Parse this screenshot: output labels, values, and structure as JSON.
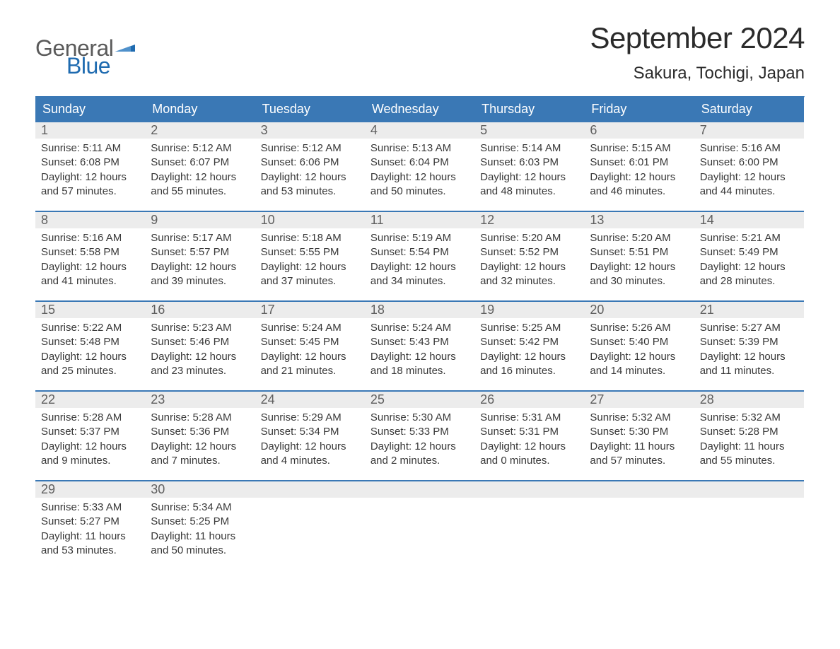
{
  "logo": {
    "text_general": "General",
    "text_blue": "Blue",
    "gray_color": "#5a5a5a",
    "blue_color": "#1f6bb0"
  },
  "header": {
    "month_title": "September 2024",
    "location": "Sakura, Tochigi, Japan"
  },
  "style": {
    "header_bg": "#3a78b5",
    "daynum_bg": "#ececec",
    "text_color": "#383838",
    "page_bg": "#ffffff"
  },
  "days_of_week": [
    "Sunday",
    "Monday",
    "Tuesday",
    "Wednesday",
    "Thursday",
    "Friday",
    "Saturday"
  ],
  "weeks": [
    [
      {
        "n": "1",
        "sr": "Sunrise: 5:11 AM",
        "ss": "Sunset: 6:08 PM",
        "dl1": "Daylight: 12 hours",
        "dl2": "and 57 minutes."
      },
      {
        "n": "2",
        "sr": "Sunrise: 5:12 AM",
        "ss": "Sunset: 6:07 PM",
        "dl1": "Daylight: 12 hours",
        "dl2": "and 55 minutes."
      },
      {
        "n": "3",
        "sr": "Sunrise: 5:12 AM",
        "ss": "Sunset: 6:06 PM",
        "dl1": "Daylight: 12 hours",
        "dl2": "and 53 minutes."
      },
      {
        "n": "4",
        "sr": "Sunrise: 5:13 AM",
        "ss": "Sunset: 6:04 PM",
        "dl1": "Daylight: 12 hours",
        "dl2": "and 50 minutes."
      },
      {
        "n": "5",
        "sr": "Sunrise: 5:14 AM",
        "ss": "Sunset: 6:03 PM",
        "dl1": "Daylight: 12 hours",
        "dl2": "and 48 minutes."
      },
      {
        "n": "6",
        "sr": "Sunrise: 5:15 AM",
        "ss": "Sunset: 6:01 PM",
        "dl1": "Daylight: 12 hours",
        "dl2": "and 46 minutes."
      },
      {
        "n": "7",
        "sr": "Sunrise: 5:16 AM",
        "ss": "Sunset: 6:00 PM",
        "dl1": "Daylight: 12 hours",
        "dl2": "and 44 minutes."
      }
    ],
    [
      {
        "n": "8",
        "sr": "Sunrise: 5:16 AM",
        "ss": "Sunset: 5:58 PM",
        "dl1": "Daylight: 12 hours",
        "dl2": "and 41 minutes."
      },
      {
        "n": "9",
        "sr": "Sunrise: 5:17 AM",
        "ss": "Sunset: 5:57 PM",
        "dl1": "Daylight: 12 hours",
        "dl2": "and 39 minutes."
      },
      {
        "n": "10",
        "sr": "Sunrise: 5:18 AM",
        "ss": "Sunset: 5:55 PM",
        "dl1": "Daylight: 12 hours",
        "dl2": "and 37 minutes."
      },
      {
        "n": "11",
        "sr": "Sunrise: 5:19 AM",
        "ss": "Sunset: 5:54 PM",
        "dl1": "Daylight: 12 hours",
        "dl2": "and 34 minutes."
      },
      {
        "n": "12",
        "sr": "Sunrise: 5:20 AM",
        "ss": "Sunset: 5:52 PM",
        "dl1": "Daylight: 12 hours",
        "dl2": "and 32 minutes."
      },
      {
        "n": "13",
        "sr": "Sunrise: 5:20 AM",
        "ss": "Sunset: 5:51 PM",
        "dl1": "Daylight: 12 hours",
        "dl2": "and 30 minutes."
      },
      {
        "n": "14",
        "sr": "Sunrise: 5:21 AM",
        "ss": "Sunset: 5:49 PM",
        "dl1": "Daylight: 12 hours",
        "dl2": "and 28 minutes."
      }
    ],
    [
      {
        "n": "15",
        "sr": "Sunrise: 5:22 AM",
        "ss": "Sunset: 5:48 PM",
        "dl1": "Daylight: 12 hours",
        "dl2": "and 25 minutes."
      },
      {
        "n": "16",
        "sr": "Sunrise: 5:23 AM",
        "ss": "Sunset: 5:46 PM",
        "dl1": "Daylight: 12 hours",
        "dl2": "and 23 minutes."
      },
      {
        "n": "17",
        "sr": "Sunrise: 5:24 AM",
        "ss": "Sunset: 5:45 PM",
        "dl1": "Daylight: 12 hours",
        "dl2": "and 21 minutes."
      },
      {
        "n": "18",
        "sr": "Sunrise: 5:24 AM",
        "ss": "Sunset: 5:43 PM",
        "dl1": "Daylight: 12 hours",
        "dl2": "and 18 minutes."
      },
      {
        "n": "19",
        "sr": "Sunrise: 5:25 AM",
        "ss": "Sunset: 5:42 PM",
        "dl1": "Daylight: 12 hours",
        "dl2": "and 16 minutes."
      },
      {
        "n": "20",
        "sr": "Sunrise: 5:26 AM",
        "ss": "Sunset: 5:40 PM",
        "dl1": "Daylight: 12 hours",
        "dl2": "and 14 minutes."
      },
      {
        "n": "21",
        "sr": "Sunrise: 5:27 AM",
        "ss": "Sunset: 5:39 PM",
        "dl1": "Daylight: 12 hours",
        "dl2": "and 11 minutes."
      }
    ],
    [
      {
        "n": "22",
        "sr": "Sunrise: 5:28 AM",
        "ss": "Sunset: 5:37 PM",
        "dl1": "Daylight: 12 hours",
        "dl2": "and 9 minutes."
      },
      {
        "n": "23",
        "sr": "Sunrise: 5:28 AM",
        "ss": "Sunset: 5:36 PM",
        "dl1": "Daylight: 12 hours",
        "dl2": "and 7 minutes."
      },
      {
        "n": "24",
        "sr": "Sunrise: 5:29 AM",
        "ss": "Sunset: 5:34 PM",
        "dl1": "Daylight: 12 hours",
        "dl2": "and 4 minutes."
      },
      {
        "n": "25",
        "sr": "Sunrise: 5:30 AM",
        "ss": "Sunset: 5:33 PM",
        "dl1": "Daylight: 12 hours",
        "dl2": "and 2 minutes."
      },
      {
        "n": "26",
        "sr": "Sunrise: 5:31 AM",
        "ss": "Sunset: 5:31 PM",
        "dl1": "Daylight: 12 hours",
        "dl2": "and 0 minutes."
      },
      {
        "n": "27",
        "sr": "Sunrise: 5:32 AM",
        "ss": "Sunset: 5:30 PM",
        "dl1": "Daylight: 11 hours",
        "dl2": "and 57 minutes."
      },
      {
        "n": "28",
        "sr": "Sunrise: 5:32 AM",
        "ss": "Sunset: 5:28 PM",
        "dl1": "Daylight: 11 hours",
        "dl2": "and 55 minutes."
      }
    ],
    [
      {
        "n": "29",
        "sr": "Sunrise: 5:33 AM",
        "ss": "Sunset: 5:27 PM",
        "dl1": "Daylight: 11 hours",
        "dl2": "and 53 minutes."
      },
      {
        "n": "30",
        "sr": "Sunrise: 5:34 AM",
        "ss": "Sunset: 5:25 PM",
        "dl1": "Daylight: 11 hours",
        "dl2": "and 50 minutes."
      },
      {
        "empty": true
      },
      {
        "empty": true
      },
      {
        "empty": true
      },
      {
        "empty": true
      },
      {
        "empty": true
      }
    ]
  ]
}
